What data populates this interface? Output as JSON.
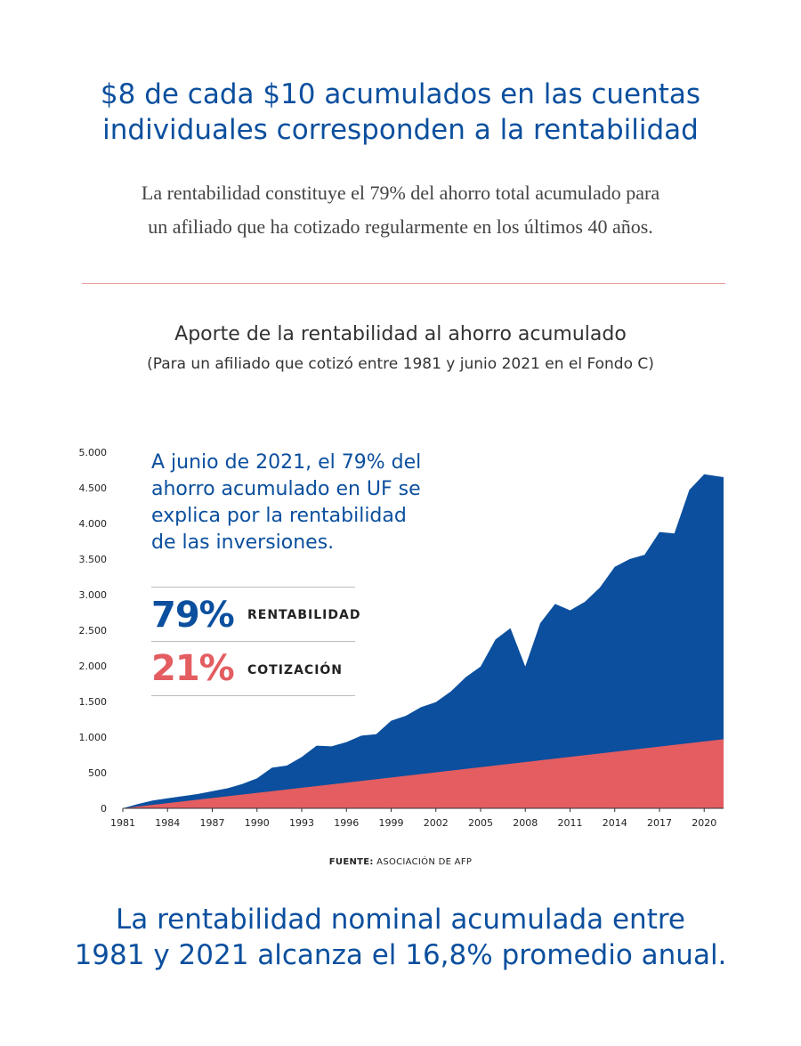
{
  "headline": {
    "line1": "$8 de cada $10 acumulados en las cuentas",
    "line2": "individuales corresponden a la rentabilidad"
  },
  "subtext": {
    "line1": "La rentabilidad constituye el 79% del ahorro total acumulado para",
    "line2": "un afiliado que ha cotizado regularmente en los últimos 40 años."
  },
  "annotation": {
    "line1": "A junio de 2021, el 79% del",
    "line2": "ahorro acumulado en UF se",
    "line3": "explica por la rentabilidad",
    "line4": "de las inversiones."
  },
  "stats": {
    "rentabilidad": {
      "value": "79%",
      "label": "RENTABILIDAD"
    },
    "cotizacion": {
      "value": "21%",
      "label": "COTIZACIÓN"
    }
  },
  "source": {
    "prefix": "FUENTE:",
    "text": "ASOCIACIÓN DE AFP"
  },
  "footer": {
    "line1": "La rentabilidad nominal acumulada entre",
    "line2": "1981 y 2021 alcanza el 16,8% promedio anual."
  },
  "colors": {
    "blue": "#0b4f9e",
    "red": "#e35d61"
  },
  "chart_data": {
    "type": "area",
    "title": "Aporte de la rentabilidad al ahorro acumulado",
    "subtitle": "(Para un afiliado que cotizó entre 1981 y junio 2021 en el Fondo C)",
    "xlim": [
      1981,
      2021.3
    ],
    "ylim": [
      0,
      5000
    ],
    "x_ticks": [
      1981,
      1984,
      1987,
      1990,
      1993,
      1996,
      1999,
      2002,
      2005,
      2008,
      2011,
      2014,
      2017,
      2020
    ],
    "y_ticks": [
      0,
      500,
      1000,
      1500,
      2000,
      2500,
      3000,
      3500,
      4000,
      4500,
      5000
    ],
    "y_tick_labels": [
      "0",
      "500",
      "1.000",
      "1.500",
      "2.000",
      "2.500",
      "3.000",
      "3.500",
      "4.000",
      "4.500",
      "5.000"
    ],
    "stacked": true,
    "series": [
      {
        "name": "COTIZACIÓN",
        "color": "#e35d61",
        "x": [
          1981,
          2021.3
        ],
        "values": [
          0,
          970
        ]
      },
      {
        "name": "RENTABILIDAD",
        "color": "#0b4f9e",
        "x": [
          1981,
          1982,
          1983,
          1984,
          1985,
          1986,
          1987,
          1988,
          1989,
          1990,
          1991,
          1992,
          1993,
          1994,
          1995,
          1996,
          1997,
          1998,
          1999,
          2000,
          2001,
          2002,
          2003,
          2004,
          2005,
          2006,
          2007,
          2008,
          2009,
          2010,
          2011,
          2012,
          2013,
          2014,
          2015,
          2016,
          2017,
          2018,
          2019,
          2020,
          2021.3
        ],
        "total": [
          0,
          60,
          110,
          140,
          170,
          200,
          240,
          280,
          340,
          420,
          570,
          600,
          720,
          880,
          870,
          930,
          1020,
          1040,
          1230,
          1300,
          1420,
          1490,
          1640,
          1840,
          1990,
          2370,
          2530,
          1990,
          2600,
          2870,
          2780,
          2900,
          3100,
          3390,
          3500,
          3560,
          3880,
          3860,
          4470,
          4690,
          4650
        ]
      }
    ]
  }
}
